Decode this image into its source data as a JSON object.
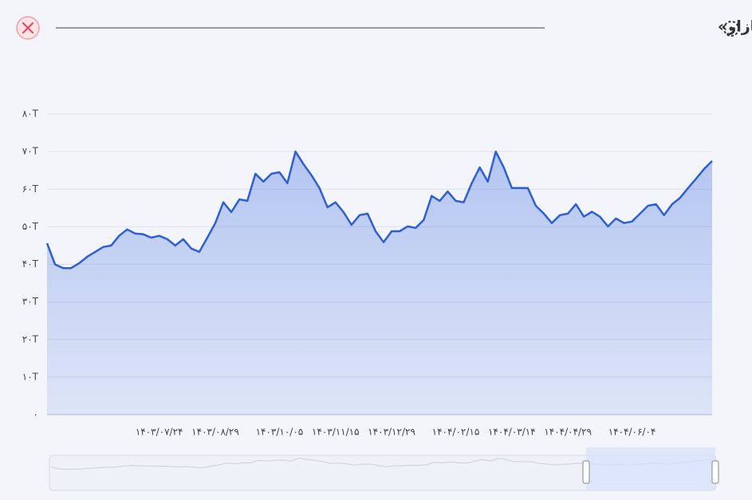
{
  "chart_data": {
    "type": "area",
    "title": "تاریخچه «ارزش بازار»",
    "categories": [
      null,
      null,
      null,
      null,
      null,
      null,
      null,
      null,
      null,
      null,
      null,
      null,
      null,
      null,
      "۱۴۰۳/۰۷/۲۴",
      null,
      null,
      null,
      null,
      null,
      null,
      "۱۴۰۳/۰۸/۲۹",
      null,
      null,
      null,
      null,
      null,
      null,
      null,
      "۱۴۰۳/۱۰/۰۵",
      null,
      null,
      null,
      null,
      null,
      null,
      "۱۴۰۳/۱۱/۱۵",
      null,
      null,
      null,
      null,
      null,
      null,
      "۱۴۰۳/۱۲/۲۹",
      null,
      null,
      null,
      null,
      null,
      null,
      null,
      "۱۴۰۴/۰۲/۱۵",
      null,
      null,
      null,
      null,
      null,
      null,
      "۱۴۰۴/۰۳/۱۴",
      null,
      null,
      null,
      null,
      null,
      null,
      "۱۴۰۴/۰۴/۲۹",
      null,
      null,
      null,
      null,
      null,
      null,
      null,
      "۱۴۰۴/۰۶/۰۴",
      null,
      null,
      null,
      null,
      null,
      null,
      null,
      null,
      null,
      null
    ],
    "values": [
      45.6,
      40,
      39,
      39,
      40.3,
      42,
      43.3,
      44.6,
      45,
      47.6,
      49.3,
      48.2,
      48,
      47.1,
      47.6,
      46.7,
      45,
      46.7,
      44.2,
      43.3,
      47.1,
      51,
      56.5,
      53.9,
      57.3,
      56.9,
      64.1,
      62,
      64.1,
      64.5,
      61.6,
      70,
      66.7,
      63.7,
      60.3,
      55.2,
      56.5,
      53.9,
      50.5,
      53.1,
      53.5,
      48.8,
      45.9,
      48.8,
      48.8,
      50.1,
      49.7,
      51.8,
      58.2,
      56.9,
      59.4,
      56.9,
      56.5,
      61.6,
      65.8,
      62,
      70,
      65.8,
      60.3,
      60.3,
      60.3,
      55.6,
      53.5,
      51,
      53.1,
      53.5,
      56,
      52.7,
      54,
      52.7,
      50.1,
      52.2,
      51,
      51.4,
      53.5,
      55.6,
      56,
      53.1,
      56,
      57.7,
      60.3,
      62.8,
      65.4,
      67.5
    ],
    "color": "#2f5fd6",
    "ylim": [
      0,
      80
    ],
    "yticks": [
      {
        "value": 0,
        "label": "۰"
      },
      {
        "value": 10,
        "label": "۱۰T"
      },
      {
        "value": 20,
        "label": "۲۰T"
      },
      {
        "value": 30,
        "label": "۳۰T"
      },
      {
        "value": 40,
        "label": "۴۰T"
      },
      {
        "value": 50,
        "label": "۵۰T"
      },
      {
        "value": 60,
        "label": "۶۰T"
      },
      {
        "value": 70,
        "label": "۷۰T"
      },
      {
        "value": 80,
        "label": "۸۰T"
      }
    ],
    "grid": true
  }
}
